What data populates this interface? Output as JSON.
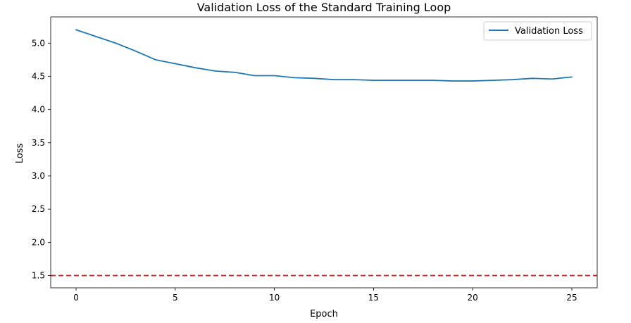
{
  "chart_data": {
    "type": "line",
    "title": "Validation Loss of the Standard Training Loop",
    "xlabel": "Epoch",
    "ylabel": "Loss",
    "xlim": [
      -1.28,
      26.28
    ],
    "ylim": [
      1.315,
      5.395
    ],
    "x_ticks": [
      0,
      5,
      10,
      15,
      20,
      25
    ],
    "x_tick_labels": [
      "0",
      "5",
      "10",
      "15",
      "20",
      "25"
    ],
    "y_ticks": [
      1.5,
      2.0,
      2.5,
      3.0,
      3.5,
      4.0,
      4.5,
      5.0
    ],
    "y_tick_labels": [
      "1.5",
      "2.0",
      "2.5",
      "3.0",
      "3.5",
      "4.0",
      "4.5",
      "5.0"
    ],
    "grid": false,
    "legend_position": "top-right",
    "series": [
      {
        "name": "Validation Loss",
        "color": "#1f77b4",
        "style": "solid",
        "x": [
          0,
          1,
          2,
          3,
          4,
          5,
          6,
          7,
          8,
          9,
          10,
          11,
          12,
          13,
          14,
          15,
          16,
          17,
          18,
          19,
          20,
          21,
          22,
          23,
          24,
          25
        ],
        "y": [
          5.2,
          5.1,
          5.0,
          4.88,
          4.75,
          4.69,
          4.63,
          4.58,
          4.56,
          4.51,
          4.51,
          4.48,
          4.47,
          4.45,
          4.45,
          4.44,
          4.44,
          4.44,
          4.44,
          4.43,
          4.43,
          4.44,
          4.45,
          4.47,
          4.46,
          4.49
        ]
      }
    ],
    "reference_lines": [
      {
        "orientation": "horizontal",
        "y": 1.5,
        "color": "#d62728",
        "style": "dashed"
      }
    ]
  }
}
